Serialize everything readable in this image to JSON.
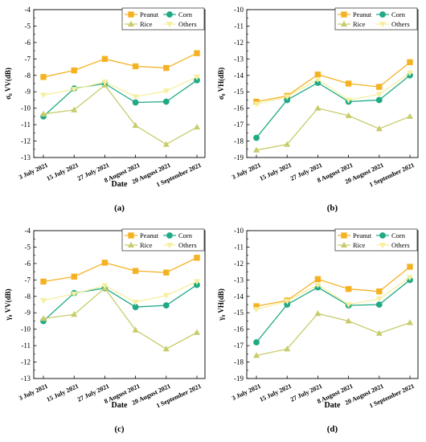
{
  "figure": {
    "colors": {
      "Peanut": "#f4b223",
      "Corn": "#1fa984",
      "Rice": "#c7cc6a",
      "Others": "#f6ef9e"
    }
  },
  "chart_data": [
    {
      "type": "line",
      "panel_label": "(a)",
      "ylabel": "σ₀ VV(dB)",
      "xlabel": "Date",
      "ylim": [
        -13,
        -4
      ],
      "yticks": [
        -13,
        -12,
        -11,
        -10,
        -9,
        -8,
        -7,
        -6,
        -5,
        -4
      ],
      "categories": [
        "3 July 2021",
        "15 July 2021",
        "27 July 2021",
        "8 August 2021",
        "20 August 2021",
        "1 September 2021"
      ],
      "series": [
        {
          "name": "Peanut",
          "marker": "square",
          "values": [
            -8.1,
            -7.7,
            -7.0,
            -7.45,
            -7.55,
            -6.65
          ]
        },
        {
          "name": "Corn",
          "marker": "circle",
          "values": [
            -10.5,
            -8.8,
            -8.5,
            -9.65,
            -9.6,
            -8.3
          ]
        },
        {
          "name": "Rice",
          "marker": "triangle",
          "values": [
            -10.35,
            -10.1,
            -8.6,
            -11.05,
            -12.2,
            -11.15
          ]
        },
        {
          "name": "Others",
          "marker": "triangle-down",
          "values": [
            -9.2,
            -8.85,
            -8.4,
            -9.3,
            -8.95,
            -8.1
          ]
        }
      ],
      "legend": "top-right",
      "grid": false
    },
    {
      "type": "line",
      "panel_label": "(b)",
      "ylabel": "σ₀ VH(dB)",
      "xlabel": "",
      "ylim": [
        -19,
        -10
      ],
      "yticks": [
        -19,
        -18,
        -17,
        -16,
        -15,
        -14,
        -13,
        -12,
        -11,
        -10
      ],
      "categories": [
        "3 July 2021",
        "15 July 2021",
        "27 July 2021",
        "8 August 2021",
        "20 August 2021",
        "1 September 2021"
      ],
      "series": [
        {
          "name": "Peanut",
          "marker": "square",
          "values": [
            -15.6,
            -15.25,
            -13.95,
            -14.5,
            -14.7,
            -13.2
          ]
        },
        {
          "name": "Corn",
          "marker": "circle",
          "values": [
            -17.8,
            -15.5,
            -14.45,
            -15.6,
            -15.5,
            -14.0
          ]
        },
        {
          "name": "Rice",
          "marker": "triangle",
          "values": [
            -18.55,
            -18.2,
            -16.0,
            -16.45,
            -17.25,
            -16.5
          ]
        },
        {
          "name": "Others",
          "marker": "triangle-down",
          "values": [
            -15.75,
            -15.3,
            -14.25,
            -15.5,
            -15.15,
            -13.85
          ]
        }
      ],
      "legend": "top-right",
      "grid": false
    },
    {
      "type": "line",
      "panel_label": "(c)",
      "ylabel": "γ₀ VV(dB)",
      "xlabel": "Date",
      "ylim": [
        -13,
        -4
      ],
      "yticks": [
        -13,
        -12,
        -11,
        -10,
        -9,
        -8,
        -7,
        -6,
        -5,
        -4
      ],
      "categories": [
        "3 July 2021",
        "15 July 2021",
        "27 July 2021",
        "8 August 2021",
        "20 August 2021",
        "1 September 2021"
      ],
      "series": [
        {
          "name": "Peanut",
          "marker": "square",
          "values": [
            -7.1,
            -6.8,
            -5.95,
            -6.45,
            -6.55,
            -5.65
          ]
        },
        {
          "name": "Corn",
          "marker": "circle",
          "values": [
            -9.5,
            -7.8,
            -7.5,
            -8.65,
            -8.55,
            -7.3
          ]
        },
        {
          "name": "Rice",
          "marker": "triangle",
          "values": [
            -9.35,
            -9.1,
            -7.5,
            -10.05,
            -11.2,
            -10.2
          ]
        },
        {
          "name": "Others",
          "marker": "triangle-down",
          "values": [
            -8.25,
            -7.85,
            -7.35,
            -8.35,
            -7.95,
            -7.1
          ]
        }
      ],
      "legend": "top-right",
      "grid": false
    },
    {
      "type": "line",
      "panel_label": "(d)",
      "ylabel": "γ₀ VH(dB)",
      "xlabel": "Date",
      "ylim": [
        -19,
        -10
      ],
      "yticks": [
        -19,
        -18,
        -17,
        -16,
        -15,
        -14,
        -13,
        -12,
        -11,
        -10
      ],
      "categories": [
        "3 July 2021",
        "15 July 2021",
        "27 July 2021",
        "8 August 2021",
        "20 August 2021",
        "1 September 2021"
      ],
      "series": [
        {
          "name": "Peanut",
          "marker": "square",
          "values": [
            -14.6,
            -14.25,
            -12.95,
            -13.55,
            -13.7,
            -12.2
          ]
        },
        {
          "name": "Corn",
          "marker": "circle",
          "values": [
            -16.8,
            -14.5,
            -13.45,
            -14.55,
            -14.5,
            -13.0
          ]
        },
        {
          "name": "Rice",
          "marker": "triangle",
          "values": [
            -17.6,
            -17.2,
            -15.05,
            -15.5,
            -16.25,
            -15.6
          ]
        },
        {
          "name": "Others",
          "marker": "triangle-down",
          "values": [
            -14.8,
            -14.3,
            -13.3,
            -14.5,
            -14.15,
            -12.85
          ]
        }
      ],
      "legend": "top-right",
      "grid": false
    }
  ]
}
